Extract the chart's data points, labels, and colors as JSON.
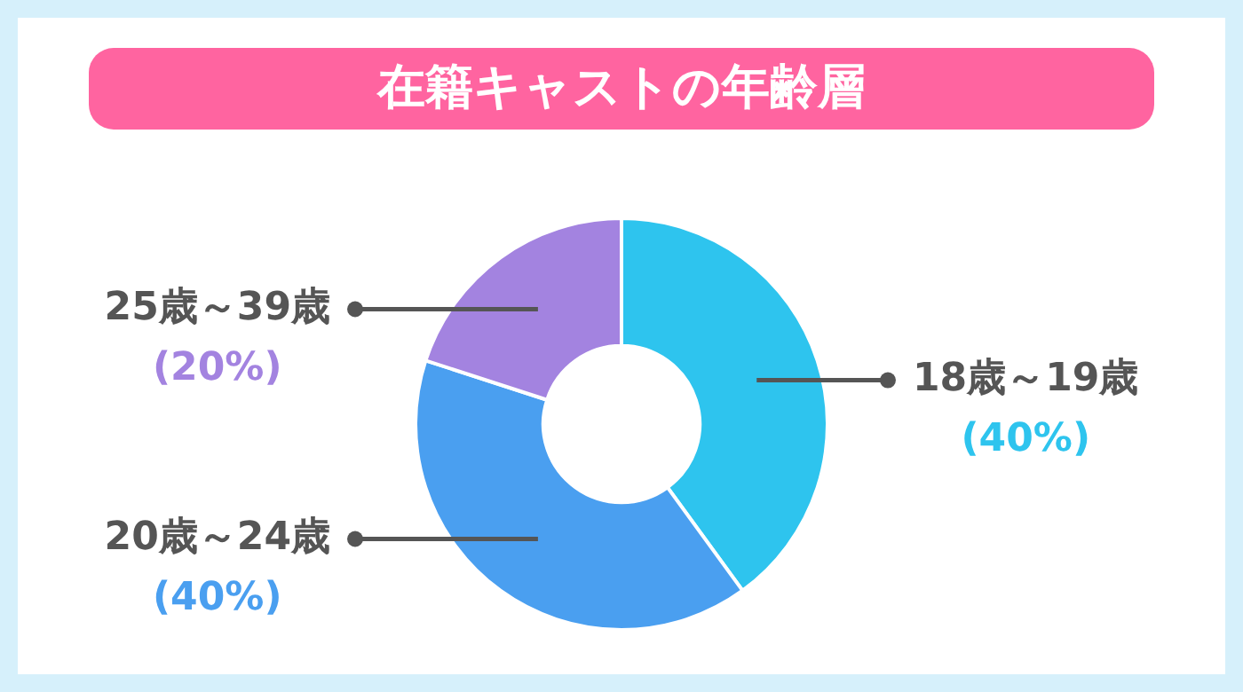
{
  "chart_data": {
    "type": "donut",
    "title": "在籍キャストの年齢層",
    "categories": [
      "18歳～19歳",
      "20歳～24歳",
      "25歳～39歳"
    ],
    "values": [
      40,
      40,
      20
    ],
    "colors": [
      "#2ec4ee",
      "#4a9ff0",
      "#a383e0"
    ],
    "value_labels": [
      "(40%)",
      "(40%)",
      "(20%)"
    ],
    "legend": false
  }
}
